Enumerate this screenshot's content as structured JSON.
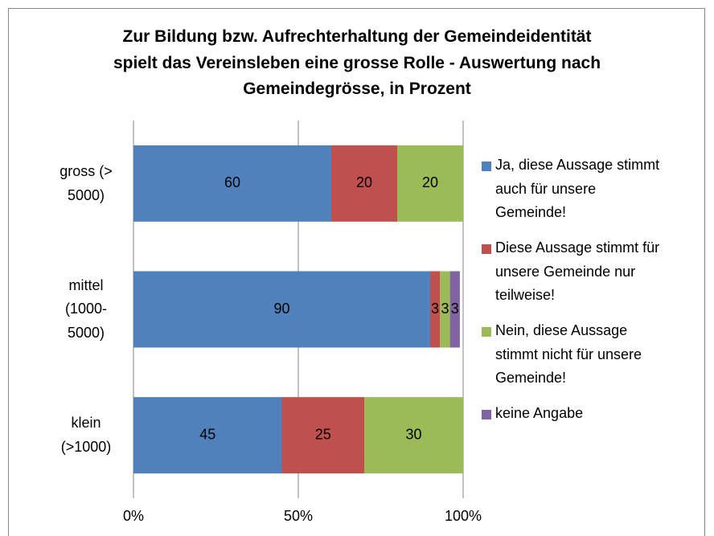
{
  "chart_data": {
    "type": "stacked-barh",
    "title": "Zur Bildung bzw. Aufrechterhaltung der Gemeindeidentität spielt das Vereinsleben eine grosse Rolle - Auswertung nach Gemeindegrösse, in Prozent",
    "categories": [
      "gross (> 5000)",
      "mittel (1000-5000)",
      "klein (>1000)"
    ],
    "series": [
      {
        "name": "Ja, diese Aussage stimmt auch für unsere Gemeinde!",
        "color": "#4f81bd",
        "values": [
          60,
          90,
          45
        ]
      },
      {
        "name": "Diese Aussage stimmt für unsere Gemeinde nur teilweise!",
        "color": "#c0504d",
        "values": [
          20,
          3,
          25
        ]
      },
      {
        "name": "Nein, diese Aussage stimmt nicht für unsere Gemeinde!",
        "color": "#9bbb59",
        "values": [
          20,
          3,
          30
        ]
      },
      {
        "name": "keine Angabe",
        "color": "#8064a2",
        "values": [
          null,
          3,
          null
        ]
      }
    ],
    "xlim": [
      0,
      100
    ],
    "xticks": [
      {
        "value": 0,
        "label": "0%"
      },
      {
        "value": 50,
        "label": "50%"
      },
      {
        "value": 100,
        "label": "100%"
      }
    ],
    "grid": true,
    "legend": "right"
  }
}
